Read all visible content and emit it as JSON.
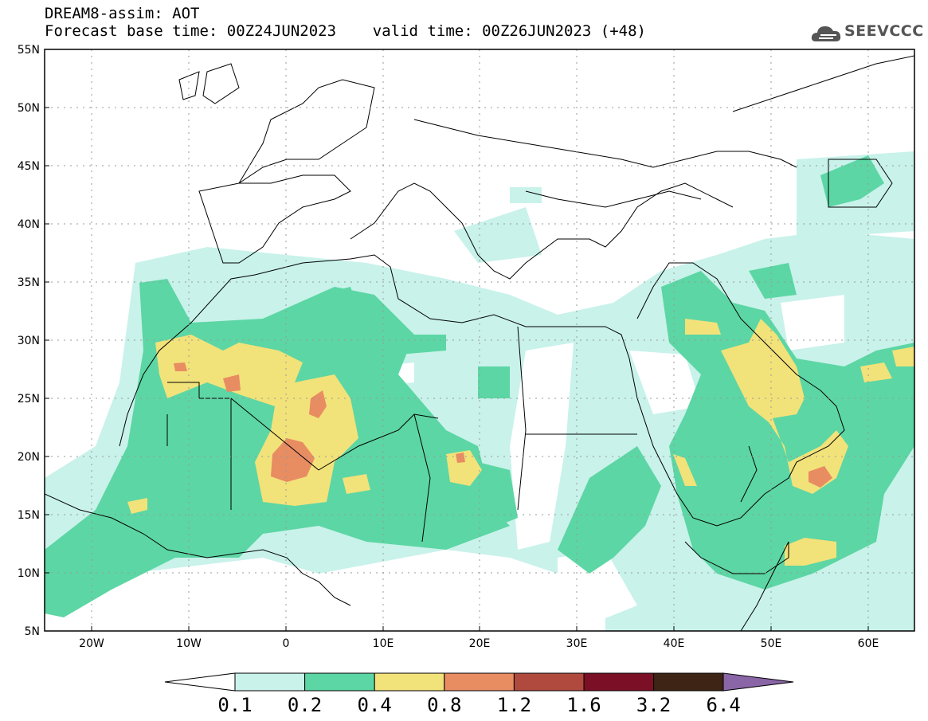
{
  "header": {
    "title_line1": "DREAM8-assim: AOT",
    "title_line2": "Forecast base time: 00Z24JUN2023    valid time: 00Z26JUN2023 (+48)",
    "logo_text": "SEEVCCC"
  },
  "map": {
    "lat_labels": [
      "55N",
      "50N",
      "45N",
      "40N",
      "35N",
      "30N",
      "25N",
      "20N",
      "15N",
      "10N",
      "5N"
    ],
    "lon_labels": [
      "20W",
      "10W",
      "0",
      "10E",
      "20E",
      "30E",
      "40E",
      "50E",
      "60E"
    ]
  },
  "colorbar": {
    "labels": [
      "0.1",
      "0.2",
      "0.4",
      "0.8",
      "1.2",
      "1.6",
      "3.2",
      "6.4"
    ],
    "colors": [
      "#c8f2ea",
      "#5cd6a4",
      "#f2e27a",
      "#e88c62",
      "#b04a3e",
      "#7a0f26",
      "#3d2414",
      "#8a66a6"
    ]
  }
}
